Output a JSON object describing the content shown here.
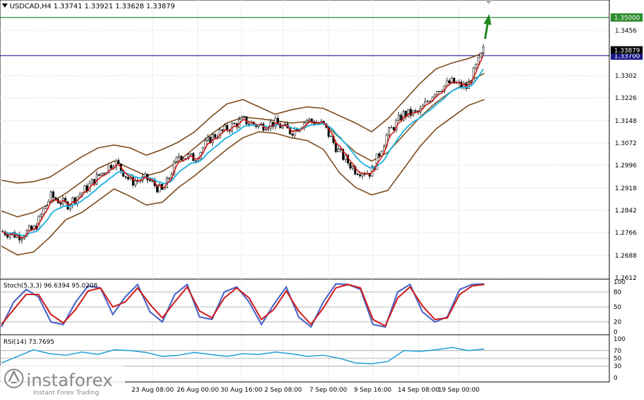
{
  "chart_data": [
    {
      "type": "candlestick",
      "panel": "price",
      "title": "USDCAD,H4  1.33741 1.33921 1.33628 1.33879",
      "symbol": "USDCAD,H4",
      "ohlc_header": {
        "open": 1.33741,
        "high": 1.33921,
        "low": 1.33628,
        "close": 1.33879
      },
      "ylim": [
        1.2612,
        1.3555
      ],
      "y_ticks": [
        1.3456,
        1.3302,
        1.3226,
        1.3148,
        1.3072,
        1.2996,
        1.2918,
        1.2842,
        1.2766,
        1.2688,
        1.2612
      ],
      "horizontal_levels": [
        {
          "value": 1.35,
          "label": "1.35000",
          "color": "#2e8b2e"
        },
        {
          "value": 1.337,
          "label": "1.33700",
          "color": "#1c1c8c"
        }
      ],
      "current_price": {
        "value": 1.33879,
        "label": "1.33879"
      },
      "x_ticks": [
        "23 Aug 08:00",
        "26 Aug 00:00",
        "30 Aug 16:00",
        "2 Sep 08:00",
        "7 Sep 00:00",
        "9 Sep 16:00",
        "14 Sep 08:00",
        "19 Sep 00:00"
      ],
      "bollinger": {
        "upper": [
          1.2945,
          1.2935,
          1.294,
          1.2955,
          1.299,
          1.3025,
          1.3055,
          1.3065,
          1.3055,
          1.303,
          1.305,
          1.3075,
          1.311,
          1.316,
          1.3205,
          1.322,
          1.3195,
          1.317,
          1.3185,
          1.3195,
          1.319,
          1.3165,
          1.314,
          1.311,
          1.3155,
          1.3215,
          1.3275,
          1.3325,
          1.3345,
          1.336,
          1.338
        ],
        "middle": [
          1.284,
          1.282,
          1.2835,
          1.2865,
          1.29,
          1.294,
          1.2985,
          1.301,
          1.2985,
          1.296,
          1.2975,
          1.301,
          1.3055,
          1.31,
          1.314,
          1.316,
          1.3155,
          1.3148,
          1.314,
          1.3145,
          1.314,
          1.309,
          1.304,
          1.301,
          1.304,
          1.31,
          1.316,
          1.321,
          1.325,
          1.328,
          1.331
        ],
        "lower": [
          1.272,
          1.269,
          1.27,
          1.275,
          1.281,
          1.2835,
          1.2875,
          1.2915,
          1.289,
          1.286,
          1.287,
          1.292,
          1.296,
          1.3005,
          1.305,
          1.309,
          1.311,
          1.3105,
          1.309,
          1.308,
          1.305,
          1.297,
          1.292,
          1.2895,
          1.291,
          1.2985,
          1.306,
          1.312,
          1.316,
          1.32,
          1.322
        ]
      },
      "price_path": [
        1.277,
        1.2755,
        1.278,
        1.289,
        1.286,
        1.2905,
        1.296,
        1.301,
        1.294,
        1.295,
        1.2905,
        1.303,
        1.302,
        1.309,
        1.312,
        1.315,
        1.313,
        1.314,
        1.311,
        1.315,
        1.3135,
        1.304,
        1.298,
        1.297,
        1.31,
        1.317,
        1.3175,
        1.325,
        1.328,
        1.326,
        1.3388
      ],
      "annotation": "up-arrow"
    },
    {
      "type": "line",
      "panel": "stochastic",
      "title": "Stoch(5,3,3) 96.6394 95.0208",
      "main_value": 96.6394,
      "signal_value": 95.0208,
      "ylim": [
        0,
        100
      ],
      "y_ticks": [
        100,
        80,
        50,
        20,
        0
      ],
      "levels": [
        80,
        50,
        20
      ],
      "series": [
        {
          "name": "%K",
          "color": "#5068c8"
        },
        {
          "name": "%D",
          "color": "#d01818"
        }
      ],
      "values": [
        10,
        60,
        85,
        70,
        20,
        15,
        60,
        92,
        88,
        35,
        70,
        95,
        40,
        20,
        75,
        95,
        30,
        25,
        80,
        90,
        60,
        15,
        55,
        90,
        30,
        10,
        60,
        96,
        95,
        85,
        15,
        10,
        80,
        95,
        40,
        20,
        30,
        85,
        95,
        96
      ],
      "signal": [
        15,
        45,
        75,
        75,
        35,
        18,
        45,
        82,
        88,
        50,
        60,
        88,
        55,
        28,
        60,
        90,
        42,
        28,
        68,
        88,
        68,
        25,
        45,
        82,
        42,
        15,
        48,
        88,
        95,
        88,
        25,
        12,
        68,
        90,
        52,
        25,
        28,
        75,
        92,
        95
      ]
    },
    {
      "type": "line",
      "panel": "rsi",
      "title": "RSI(14) 73.7695",
      "value": 73.7695,
      "ylim": [
        0,
        100
      ],
      "y_ticks": [
        100,
        70,
        50,
        30,
        0
      ],
      "levels": [
        70,
        50,
        30
      ],
      "series": [
        {
          "name": "RSI",
          "color": "#29a3d6"
        }
      ],
      "values": [
        38,
        55,
        72,
        62,
        58,
        66,
        60,
        72,
        70,
        65,
        55,
        58,
        65,
        60,
        55,
        62,
        60,
        66,
        62,
        55,
        58,
        50,
        38,
        36,
        42,
        70,
        68,
        72,
        78,
        70,
        73.77
      ]
    }
  ],
  "watermark": {
    "brand": "instaforex",
    "tagline": "Instant Forex Trading"
  }
}
